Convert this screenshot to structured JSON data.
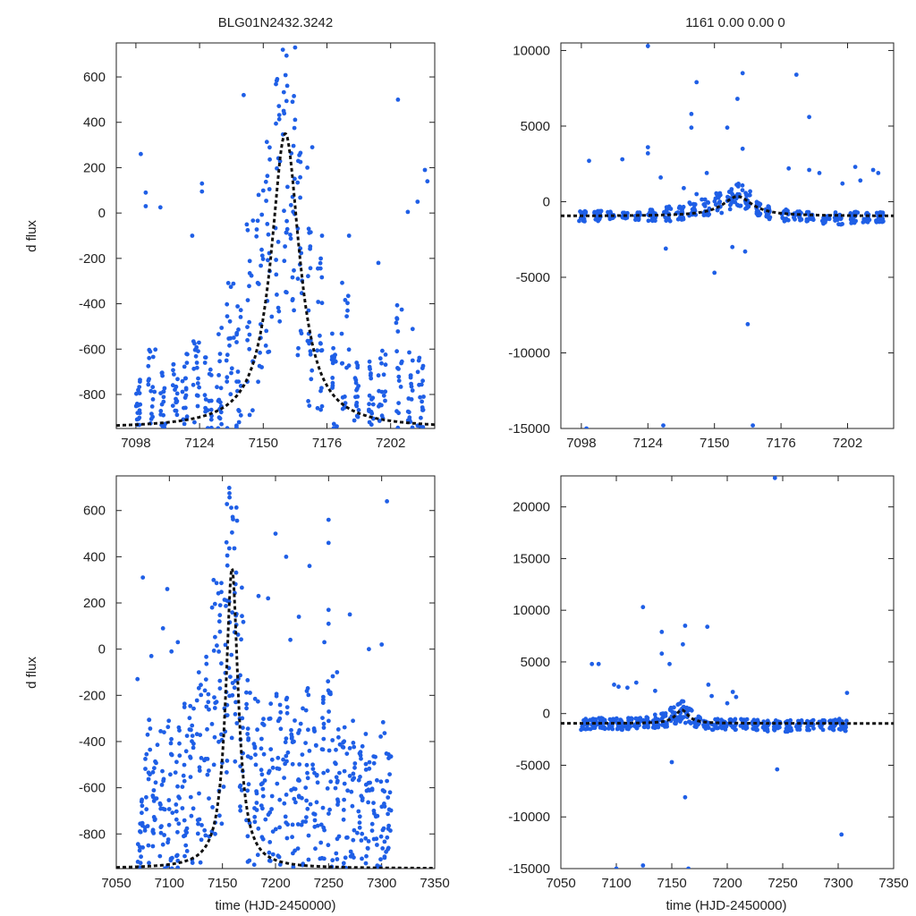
{
  "chart_data": [
    {
      "type": "scatter",
      "title": "BLG01N2432.3242",
      "xlabel": "",
      "ylabel": "d flux",
      "xlim": [
        7090,
        7220
      ],
      "ylim": [
        -950,
        750
      ],
      "xticks": [
        7098,
        7124,
        7150,
        7176,
        7202
      ],
      "yticks": [
        -800,
        -600,
        -400,
        -200,
        0,
        200,
        400,
        600
      ],
      "point_color": "#1f5fe6",
      "model": {
        "baseline": -950,
        "peak": 350,
        "t0": 7159,
        "width": 7
      },
      "visits": [
        [
          7098,
          7100,
          -950,
          -720
        ],
        [
          7103,
          7106,
          -950,
          -600
        ],
        [
          7108,
          7110,
          -950,
          -700
        ],
        [
          7113,
          7115,
          -950,
          -650
        ],
        [
          7117,
          7119,
          -950,
          -600
        ],
        [
          7121,
          7124,
          -950,
          -500
        ],
        [
          7126,
          7129,
          -950,
          -600
        ],
        [
          7131,
          7133,
          -950,
          -500
        ],
        [
          7135,
          7138,
          -950,
          -300
        ],
        [
          7139,
          7141,
          -950,
          -400
        ],
        [
          7143,
          7146,
          -950,
          0
        ],
        [
          7147,
          7150,
          -900,
          100
        ],
        [
          7151,
          7154,
          -800,
          400
        ],
        [
          7155,
          7157,
          -600,
          600
        ],
        [
          7158,
          7160,
          -400,
          700
        ],
        [
          7161,
          7163,
          -500,
          640
        ],
        [
          7164,
          7166,
          -700,
          300
        ],
        [
          7168,
          7170,
          -850,
          0
        ],
        [
          7172,
          7174,
          -950,
          -200
        ],
        [
          7178,
          7180,
          -950,
          -500
        ],
        [
          7182,
          7185,
          -950,
          -300
        ],
        [
          7187,
          7189,
          -950,
          -600
        ],
        [
          7193,
          7195,
          -950,
          -650
        ],
        [
          7197,
          7200,
          -950,
          -600
        ],
        [
          7204,
          7207,
          -950,
          -400
        ],
        [
          7209,
          7211,
          -950,
          -500
        ],
        [
          7213,
          7216,
          -950,
          -600
        ]
      ],
      "points": [
        [
          7100,
          260
        ],
        [
          7102,
          90
        ],
        [
          7102,
          30
        ],
        [
          7108,
          25
        ],
        [
          7121,
          -100
        ],
        [
          7125,
          130
        ],
        [
          7125,
          95
        ],
        [
          7142,
          520
        ],
        [
          7158,
          720
        ],
        [
          7163,
          730
        ],
        [
          7168,
          200
        ],
        [
          7170,
          290
        ],
        [
          7174,
          -100
        ],
        [
          7185,
          -100
        ],
        [
          7197,
          -220
        ],
        [
          7205,
          500
        ],
        [
          7209,
          5
        ],
        [
          7213,
          50
        ],
        [
          7216,
          190
        ],
        [
          7217,
          140
        ]
      ]
    },
    {
      "type": "scatter",
      "title": "1161   0.00   0.00   0",
      "xlabel": "",
      "ylabel": "",
      "xlim": [
        7090,
        7220
      ],
      "ylim": [
        -15000,
        10500
      ],
      "xticks": [
        7098,
        7124,
        7150,
        7176,
        7202
      ],
      "yticks": [
        -15000,
        -10000,
        -5000,
        0,
        5000,
        10000
      ],
      "point_color": "#1f5fe6",
      "model": {
        "baseline": -950,
        "peak": 350,
        "t0": 7159,
        "width": 7
      },
      "visits": [
        [
          7097,
          7100,
          -1300,
          -600
        ],
        [
          7103,
          7106,
          -1300,
          -600
        ],
        [
          7108,
          7111,
          -1200,
          -650
        ],
        [
          7114,
          7116,
          -1200,
          -700
        ],
        [
          7119,
          7121,
          -1300,
          -700
        ],
        [
          7124,
          7127,
          -1300,
          -500
        ],
        [
          7130,
          7133,
          -1300,
          -300
        ],
        [
          7135,
          7138,
          -1200,
          -300
        ],
        [
          7140,
          7143,
          -1000,
          0
        ],
        [
          7145,
          7148,
          -900,
          300
        ],
        [
          7150,
          7153,
          -800,
          600
        ],
        [
          7155,
          7157,
          -500,
          900
        ],
        [
          7158,
          7161,
          -500,
          1200
        ],
        [
          7162,
          7164,
          -600,
          700
        ],
        [
          7166,
          7168,
          -900,
          0
        ],
        [
          7170,
          7172,
          -1200,
          -300
        ],
        [
          7176,
          7179,
          -1300,
          -500
        ],
        [
          7181,
          7184,
          -1300,
          -600
        ],
        [
          7186,
          7189,
          -1300,
          -600
        ],
        [
          7192,
          7195,
          -1500,
          -700
        ],
        [
          7197,
          7200,
          -1600,
          -700
        ],
        [
          7203,
          7206,
          -1500,
          -650
        ],
        [
          7208,
          7211,
          -1400,
          -700
        ],
        [
          7213,
          7216,
          -1400,
          -700
        ]
      ],
      "points": [
        [
          7101,
          2700
        ],
        [
          7114,
          2800
        ],
        [
          7124,
          10300
        ],
        [
          7124,
          3600
        ],
        [
          7124,
          3200
        ],
        [
          7129,
          1600
        ],
        [
          7138,
          900
        ],
        [
          7141,
          5800
        ],
        [
          7141,
          4900
        ],
        [
          7143,
          7900
        ],
        [
          7143,
          500
        ],
        [
          7147,
          1900
        ],
        [
          7150,
          -4700
        ],
        [
          7155,
          4900
        ],
        [
          7157,
          -3000
        ],
        [
          7159,
          6800
        ],
        [
          7161,
          8500
        ],
        [
          7161,
          3500
        ],
        [
          7162,
          -3300
        ],
        [
          7163,
          -8100
        ],
        [
          7165,
          -14800
        ],
        [
          7179,
          2200
        ],
        [
          7182,
          8400
        ],
        [
          7187,
          5600
        ],
        [
          7187,
          2100
        ],
        [
          7191,
          1900
        ],
        [
          7205,
          2300
        ],
        [
          7207,
          1400
        ],
        [
          7212,
          2100
        ],
        [
          7214,
          1900
        ],
        [
          7200,
          1200
        ],
        [
          7131,
          -3100
        ],
        [
          7100,
          -15000
        ],
        [
          7130,
          -14800
        ]
      ]
    },
    {
      "type": "scatter",
      "title": "",
      "xlabel": "time (HJD-2450000)",
      "ylabel": "d flux",
      "xlim": [
        7050,
        7350
      ],
      "ylim": [
        -950,
        750
      ],
      "xticks": [
        7050,
        7100,
        7150,
        7200,
        7250,
        7300,
        7350
      ],
      "yticks": [
        -800,
        -600,
        -400,
        -200,
        0,
        200,
        400,
        600
      ],
      "point_color": "#1f5fe6",
      "model": {
        "baseline": -950,
        "peak": 350,
        "t0": 7159,
        "width": 7
      },
      "visits": [
        [
          7070,
          7075,
          -950,
          -650
        ],
        [
          7077,
          7082,
          -950,
          -300
        ],
        [
          7084,
          7089,
          -950,
          -400
        ],
        [
          7091,
          7096,
          -950,
          -350
        ],
        [
          7098,
          7103,
          -950,
          -300
        ],
        [
          7105,
          7110,
          -950,
          -250
        ],
        [
          7112,
          7117,
          -950,
          -200
        ],
        [
          7119,
          7124,
          -950,
          -200
        ],
        [
          7126,
          7131,
          -950,
          -100
        ],
        [
          7133,
          7138,
          -950,
          0
        ],
        [
          7140,
          7145,
          -950,
          300
        ],
        [
          7146,
          7150,
          -800,
          500
        ],
        [
          7151,
          7155,
          -600,
          650
        ],
        [
          7156,
          7160,
          -400,
          730
        ],
        [
          7161,
          7165,
          -500,
          650
        ],
        [
          7166,
          7170,
          -800,
          300
        ],
        [
          7172,
          7177,
          -950,
          -100
        ],
        [
          7179,
          7184,
          -950,
          -200
        ],
        [
          7186,
          7191,
          -950,
          -300
        ],
        [
          7193,
          7198,
          -950,
          -200
        ],
        [
          7200,
          7205,
          -950,
          -100
        ],
        [
          7207,
          7212,
          -950,
          -200
        ],
        [
          7214,
          7219,
          -950,
          -300
        ],
        [
          7221,
          7226,
          -950,
          -200
        ],
        [
          7228,
          7233,
          -950,
          -100
        ],
        [
          7235,
          7240,
          -950,
          -300
        ],
        [
          7242,
          7247,
          -950,
          -200
        ],
        [
          7249,
          7254,
          -950,
          -100
        ],
        [
          7256,
          7261,
          -950,
          -300
        ],
        [
          7263,
          7268,
          -950,
          -250
        ],
        [
          7270,
          7275,
          -950,
          -300
        ],
        [
          7277,
          7282,
          -950,
          -400
        ],
        [
          7284,
          7289,
          -950,
          -300
        ],
        [
          7291,
          7296,
          -950,
          -400
        ],
        [
          7298,
          7303,
          -950,
          -300
        ],
        [
          7304,
          7309,
          -950,
          -400
        ]
      ],
      "points": [
        [
          7075,
          310
        ],
        [
          7070,
          -130
        ],
        [
          7083,
          -30
        ],
        [
          7094,
          90
        ],
        [
          7098,
          260
        ],
        [
          7102,
          -10
        ],
        [
          7108,
          30
        ],
        [
          7200,
          500
        ],
        [
          7210,
          400
        ],
        [
          7232,
          360
        ],
        [
          7250,
          560
        ],
        [
          7250,
          460
        ],
        [
          7250,
          170
        ],
        [
          7250,
          110
        ],
        [
          7270,
          150
        ],
        [
          7288,
          0
        ],
        [
          7305,
          640
        ],
        [
          7300,
          20
        ],
        [
          7246,
          30
        ],
        [
          7258,
          -100
        ],
        [
          7222,
          140
        ],
        [
          7214,
          40
        ],
        [
          7193,
          220
        ],
        [
          7184,
          230
        ]
      ]
    },
    {
      "type": "scatter",
      "title": "",
      "xlabel": "time (HJD-2450000)",
      "ylabel": "",
      "xlim": [
        7050,
        7350
      ],
      "ylim": [
        -15000,
        23000
      ],
      "xticks": [
        7050,
        7100,
        7150,
        7200,
        7250,
        7300,
        7350
      ],
      "yticks": [
        -15000,
        -10000,
        -5000,
        0,
        5000,
        10000,
        15000,
        20000
      ],
      "point_color": "#1f5fe6",
      "model": {
        "baseline": -950,
        "peak": 350,
        "t0": 7159,
        "width": 7
      },
      "visits": [
        [
          7068,
          7074,
          -1600,
          -500
        ],
        [
          7076,
          7082,
          -1500,
          -400
        ],
        [
          7084,
          7090,
          -1500,
          -400
        ],
        [
          7092,
          7098,
          -1500,
          -500
        ],
        [
          7100,
          7106,
          -1600,
          -400
        ],
        [
          7108,
          7114,
          -1500,
          -400
        ],
        [
          7116,
          7122,
          -1500,
          -400
        ],
        [
          7124,
          7130,
          -1400,
          -300
        ],
        [
          7132,
          7138,
          -1400,
          -100
        ],
        [
          7140,
          7146,
          -1300,
          200
        ],
        [
          7148,
          7154,
          -1000,
          600
        ],
        [
          7155,
          7161,
          -800,
          1300
        ],
        [
          7162,
          7168,
          -1000,
          600
        ],
        [
          7170,
          7176,
          -1300,
          -200
        ],
        [
          7178,
          7184,
          -1500,
          -400
        ],
        [
          7186,
          7192,
          -1600,
          -500
        ],
        [
          7194,
          7200,
          -1600,
          -500
        ],
        [
          7202,
          7208,
          -1600,
          -500
        ],
        [
          7212,
          7218,
          -1600,
          -500
        ],
        [
          7222,
          7228,
          -1700,
          -600
        ],
        [
          7232,
          7238,
          -1800,
          -600
        ],
        [
          7242,
          7248,
          -1700,
          -600
        ],
        [
          7252,
          7258,
          -1800,
          -600
        ],
        [
          7262,
          7268,
          -1600,
          -600
        ],
        [
          7272,
          7278,
          -1600,
          -600
        ],
        [
          7282,
          7288,
          -1700,
          -600
        ],
        [
          7292,
          7298,
          -1600,
          -500
        ],
        [
          7300,
          7308,
          -1700,
          -500
        ]
      ],
      "points": [
        [
          7078,
          4800
        ],
        [
          7084,
          4800
        ],
        [
          7098,
          2800
        ],
        [
          7102,
          2600
        ],
        [
          7110,
          2500
        ],
        [
          7118,
          3000
        ],
        [
          7124,
          10300
        ],
        [
          7135,
          2200
        ],
        [
          7141,
          7900
        ],
        [
          7141,
          5800
        ],
        [
          7148,
          4800
        ],
        [
          7150,
          -4700
        ],
        [
          7160,
          6700
        ],
        [
          7162,
          8500
        ],
        [
          7162,
          -8100
        ],
        [
          7165,
          -15000
        ],
        [
          7182,
          8400
        ],
        [
          7183,
          2800
        ],
        [
          7186,
          1700
        ],
        [
          7200,
          1000
        ],
        [
          7205,
          2100
        ],
        [
          7208,
          1600
        ],
        [
          7243,
          22800
        ],
        [
          7245,
          -5400
        ],
        [
          7303,
          -11700
        ],
        [
          7308,
          2000
        ],
        [
          7100,
          -15000
        ],
        [
          7124,
          -14700
        ]
      ]
    }
  ]
}
